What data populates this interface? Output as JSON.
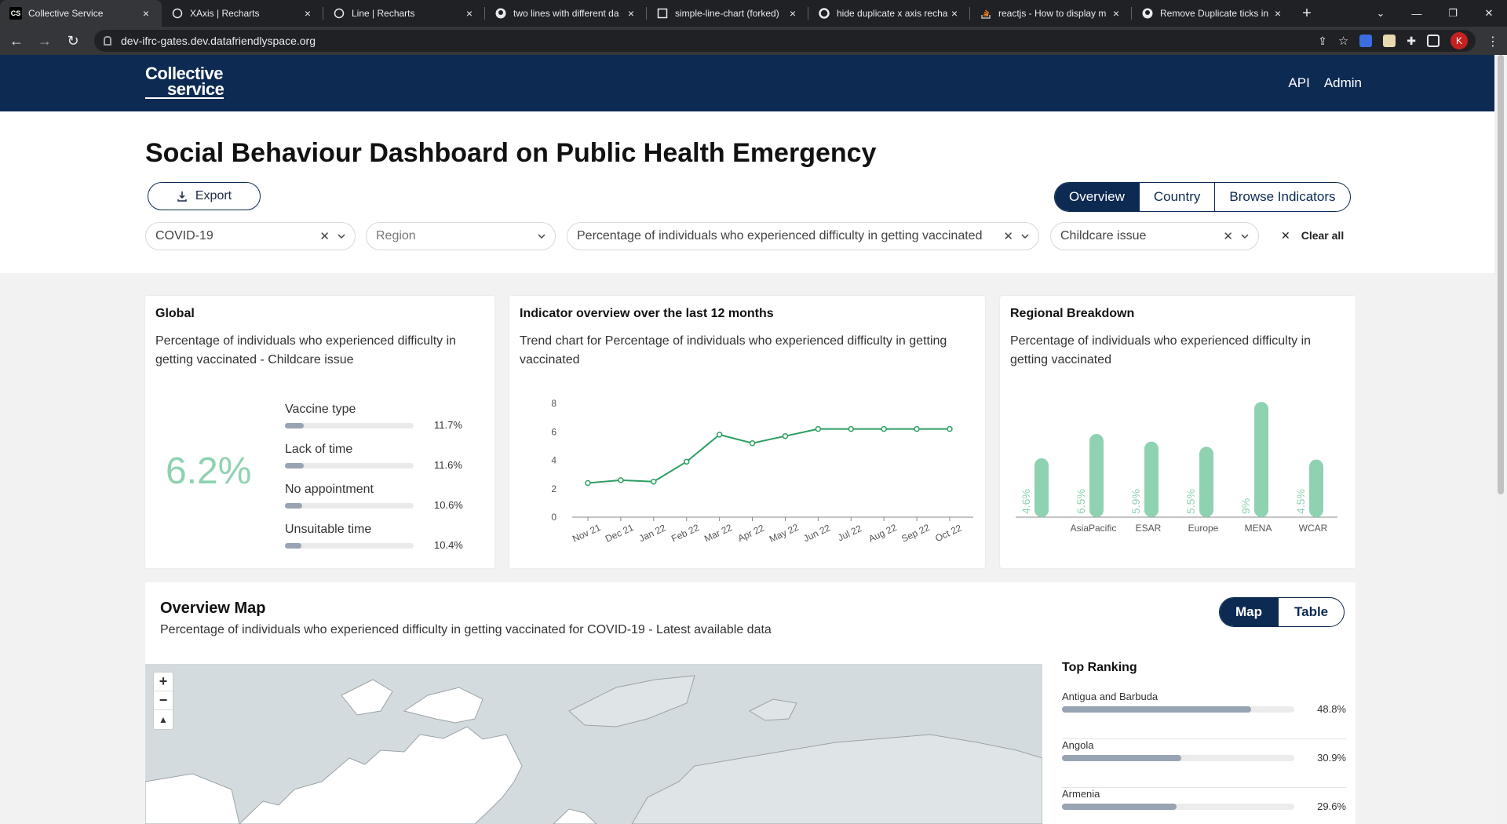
{
  "browser": {
    "tabs": [
      {
        "title": "Collective Service",
        "favicon": "CS",
        "active": true
      },
      {
        "title": "XAxis | Recharts",
        "favicon": "recharts"
      },
      {
        "title": "Line | Recharts",
        "favicon": "recharts"
      },
      {
        "title": "two lines with different da",
        "favicon": "github"
      },
      {
        "title": "simple-line-chart (forked)",
        "favicon": "codesandbox"
      },
      {
        "title": "hide duplicate x axis recha",
        "favicon": "google"
      },
      {
        "title": "reactjs - How to display m",
        "favicon": "stackoverflow"
      },
      {
        "title": "Remove Duplicate ticks in",
        "favicon": "github"
      }
    ],
    "url": "dev-ifrc-gates.dev.datafriendlyspace.org",
    "profile_initial": "K"
  },
  "header": {
    "logo_line1": "Collective",
    "logo_line2": "service",
    "links": [
      "API",
      "Admin"
    ]
  },
  "page": {
    "title": "Social Behaviour Dashboard on Public Health Emergency",
    "export_label": "Export",
    "view_tabs": [
      "Overview",
      "Country",
      "Browse Indicators"
    ],
    "active_view": "Overview",
    "filters": {
      "outbreak": "COVID-19",
      "region_placeholder": "Region",
      "indicator": "Percentage of individuals who experienced difficulty in getting vaccinated",
      "subvariable": "Childcare issue"
    },
    "clear_all": "Clear all"
  },
  "global_card": {
    "title": "Global",
    "subtitle": "Percentage of individuals who experienced difficulty in getting vaccinated - Childcare issue",
    "value": "6.2%",
    "metrics": [
      {
        "label": "Vaccine type",
        "value": "11.7%",
        "fraction": 0.117
      },
      {
        "label": "Lack of time",
        "value": "11.6%",
        "fraction": 0.116
      },
      {
        "label": "No appointment",
        "value": "10.6%",
        "fraction": 0.106
      },
      {
        "label": "Unsuitable time",
        "value": "10.4%",
        "fraction": 0.104
      }
    ]
  },
  "trend_card": {
    "title": "Indicator overview over the last 12 months",
    "subtitle": "Trend chart for Percentage of individuals who experienced difficulty in getting vaccinated"
  },
  "regional_card": {
    "title": "Regional Breakdown",
    "subtitle": "Percentage of individuals who experienced difficulty in getting vaccinated"
  },
  "chart_data": [
    {
      "type": "line",
      "title": "Indicator overview over the last 12 months",
      "categories": [
        "Nov 21",
        "Dec 21",
        "Jan 22",
        "Feb 22",
        "Mar 22",
        "Apr 22",
        "May 22",
        "Jun 22",
        "Jul 22",
        "Aug 22",
        "Sep 22",
        "Oct 22"
      ],
      "values": [
        2.4,
        2.6,
        2.5,
        3.9,
        5.8,
        5.2,
        5.7,
        6.2,
        6.2,
        6.2,
        6.2,
        6.2
      ],
      "yticks": [
        0,
        2,
        4,
        6,
        8
      ],
      "ylim": [
        0,
        8
      ],
      "color": "#2e9e63"
    },
    {
      "type": "bar",
      "title": "Regional Breakdown",
      "categories": [
        "",
        "AsiaPacific",
        "ESAR",
        "Europe",
        "MENA",
        "WCAR"
      ],
      "values": [
        4.6,
        6.5,
        5.9,
        5.5,
        9.0,
        4.5
      ],
      "labels": [
        "4.6%",
        "6.5%",
        "5.9%",
        "5.5%",
        "9%",
        "4.5%"
      ],
      "ylim": [
        0,
        9.5
      ],
      "color": "#8fd2b1"
    }
  ],
  "overview_map": {
    "title": "Overview Map",
    "subtitle": "Percentage of individuals who experienced difficulty in getting vaccinated for COVID-19 - Latest available data",
    "toggle": [
      "Map",
      "Table"
    ],
    "active_toggle": "Map",
    "zoom_in": "+",
    "zoom_out": "−",
    "reset_north": "▲",
    "ranking_title": "Top Ranking",
    "ranking": [
      {
        "country": "Antigua and Barbuda",
        "value": "48.8%",
        "fraction": 0.488
      },
      {
        "country": "Angola",
        "value": "30.9%",
        "fraction": 0.309
      },
      {
        "country": "Armenia",
        "value": "29.6%",
        "fraction": 0.296
      }
    ]
  },
  "colors": {
    "navy": "#0c2a52",
    "accent_green": "#8fd2b1",
    "line_green": "#2e9e63",
    "bar_grey": "#98a4b3"
  }
}
